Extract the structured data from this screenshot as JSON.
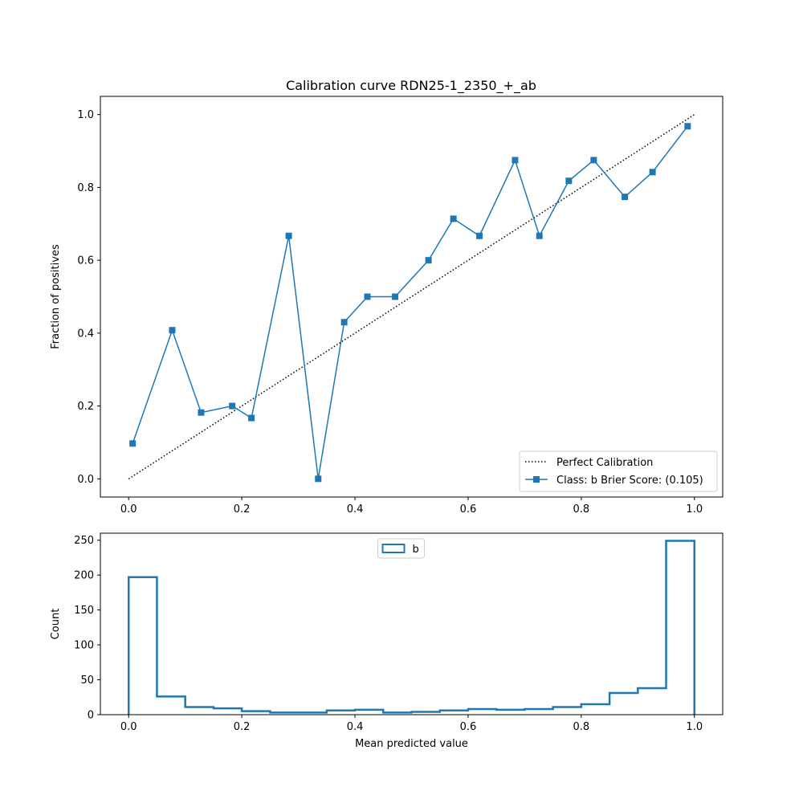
{
  "colors": {
    "series": "#1f77b4",
    "reference": "#000000",
    "axes": "#000000"
  },
  "chart_data": [
    {
      "type": "line",
      "title": "Calibration curve RDN25-1_2350_+_ab",
      "xlabel": "",
      "ylabel": "Fraction of positives",
      "xlim": [
        -0.05,
        1.05
      ],
      "ylim": [
        -0.05,
        1.05
      ],
      "xticks": [
        0.0,
        0.2,
        0.4,
        0.6,
        0.8,
        1.0
      ],
      "xtick_labels": [
        "0.0",
        "0.2",
        "0.4",
        "0.6",
        "0.8",
        "1.0"
      ],
      "yticks": [
        0.0,
        0.2,
        0.4,
        0.6,
        0.8,
        1.0
      ],
      "ytick_labels": [
        "0.0",
        "0.2",
        "0.4",
        "0.6",
        "0.8",
        "1.0"
      ],
      "grid": false,
      "legend_position": "lower-right",
      "reference": {
        "name": "Perfect Calibration",
        "x": [
          0,
          1
        ],
        "y": [
          0,
          1
        ],
        "style": "dotted"
      },
      "series": [
        {
          "name": "Class: b Brier Score: (0.105)",
          "marker": "square",
          "x": [
            0.007,
            0.077,
            0.128,
            0.183,
            0.217,
            0.283,
            0.335,
            0.381,
            0.422,
            0.471,
            0.53,
            0.574,
            0.62,
            0.683,
            0.726,
            0.778,
            0.822,
            0.877,
            0.926,
            0.988
          ],
          "y": [
            0.097,
            0.408,
            0.182,
            0.2,
            0.167,
            0.667,
            0.0,
            0.43,
            0.5,
            0.5,
            0.6,
            0.714,
            0.667,
            0.875,
            0.667,
            0.818,
            0.875,
            0.774,
            0.842,
            0.968
          ]
        }
      ]
    },
    {
      "type": "histogram",
      "title": "",
      "xlabel": "Mean predicted value",
      "ylabel": "Count",
      "xlim": [
        -0.05,
        1.05
      ],
      "ylim": [
        0,
        260
      ],
      "xticks": [
        0.0,
        0.2,
        0.4,
        0.6,
        0.8,
        1.0
      ],
      "xtick_labels": [
        "0.0",
        "0.2",
        "0.4",
        "0.6",
        "0.8",
        "1.0"
      ],
      "yticks": [
        0,
        50,
        100,
        150,
        200,
        250
      ],
      "ytick_labels": [
        "0",
        "50",
        "100",
        "150",
        "200",
        "250"
      ],
      "grid": false,
      "legend_position": "top-center",
      "bin_edges": [
        0.0,
        0.05,
        0.1,
        0.15,
        0.2,
        0.25,
        0.3,
        0.35,
        0.4,
        0.45,
        0.5,
        0.55,
        0.6,
        0.65,
        0.7,
        0.75,
        0.8,
        0.85,
        0.9,
        0.95,
        1.0
      ],
      "series": [
        {
          "name": "b",
          "histtype": "step",
          "counts": [
            197,
            26,
            11,
            9,
            5,
            3,
            3,
            6,
            7,
            3,
            4,
            6,
            8,
            7,
            8,
            11,
            15,
            31,
            38,
            249
          ]
        }
      ]
    }
  ]
}
